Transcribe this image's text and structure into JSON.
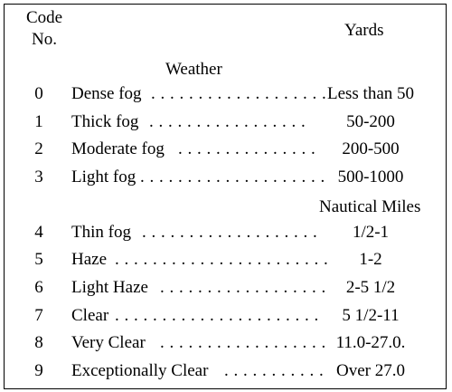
{
  "headers": {
    "code_line1": "Code",
    "code_line2": "No.",
    "yards": "Yards",
    "weather": "Weather",
    "nautical_miles": "Nautical Miles"
  },
  "rows": [
    {
      "code": "0",
      "weather": "Dense fog",
      "leader": ". . . . . . . . . . . . . . . . . . .",
      "value": "Less than 50"
    },
    {
      "code": "1",
      "weather": "Thick fog",
      "leader": ". . . . . . . . . . . . . . . . .",
      "value": "50-200"
    },
    {
      "code": "2",
      "weather": "Moderate fog",
      "leader": ". . . . . . . . . . . . . . .",
      "value": "200-500"
    },
    {
      "code": "3",
      "weather": "Light fog",
      "leader": ". . . . . . . . . . . . . . . . . . . .",
      "value": "500-1000"
    },
    {
      "code": "4",
      "weather": "Thin fog",
      "leader": ". . . . . . . . . . . . . . . . . . .",
      "value": "1/2-1"
    },
    {
      "code": "5",
      "weather": "Haze",
      "leader": ". . . . . . . . . . . . . . . . . . . . . . .",
      "value": "1-2"
    },
    {
      "code": "6",
      "weather": "Light Haze",
      "leader": ". . . . . . . . . . . . . . . . . .",
      "value": "2-5 1/2"
    },
    {
      "code": "7",
      "weather": "Clear",
      "leader": ". . . . . . . . . . . . . . . . . . . . . .",
      "value": "5 1/2-11"
    },
    {
      "code": "8",
      "weather": "Very Clear",
      "leader": ". . . . . . . . . . . . . . . . . .",
      "value": "11.0-27.0."
    },
    {
      "code": "9",
      "weather": "Exceptionally Clear",
      "leader": ". . . . . . . . . . .",
      "value": "Over 27.0"
    }
  ]
}
